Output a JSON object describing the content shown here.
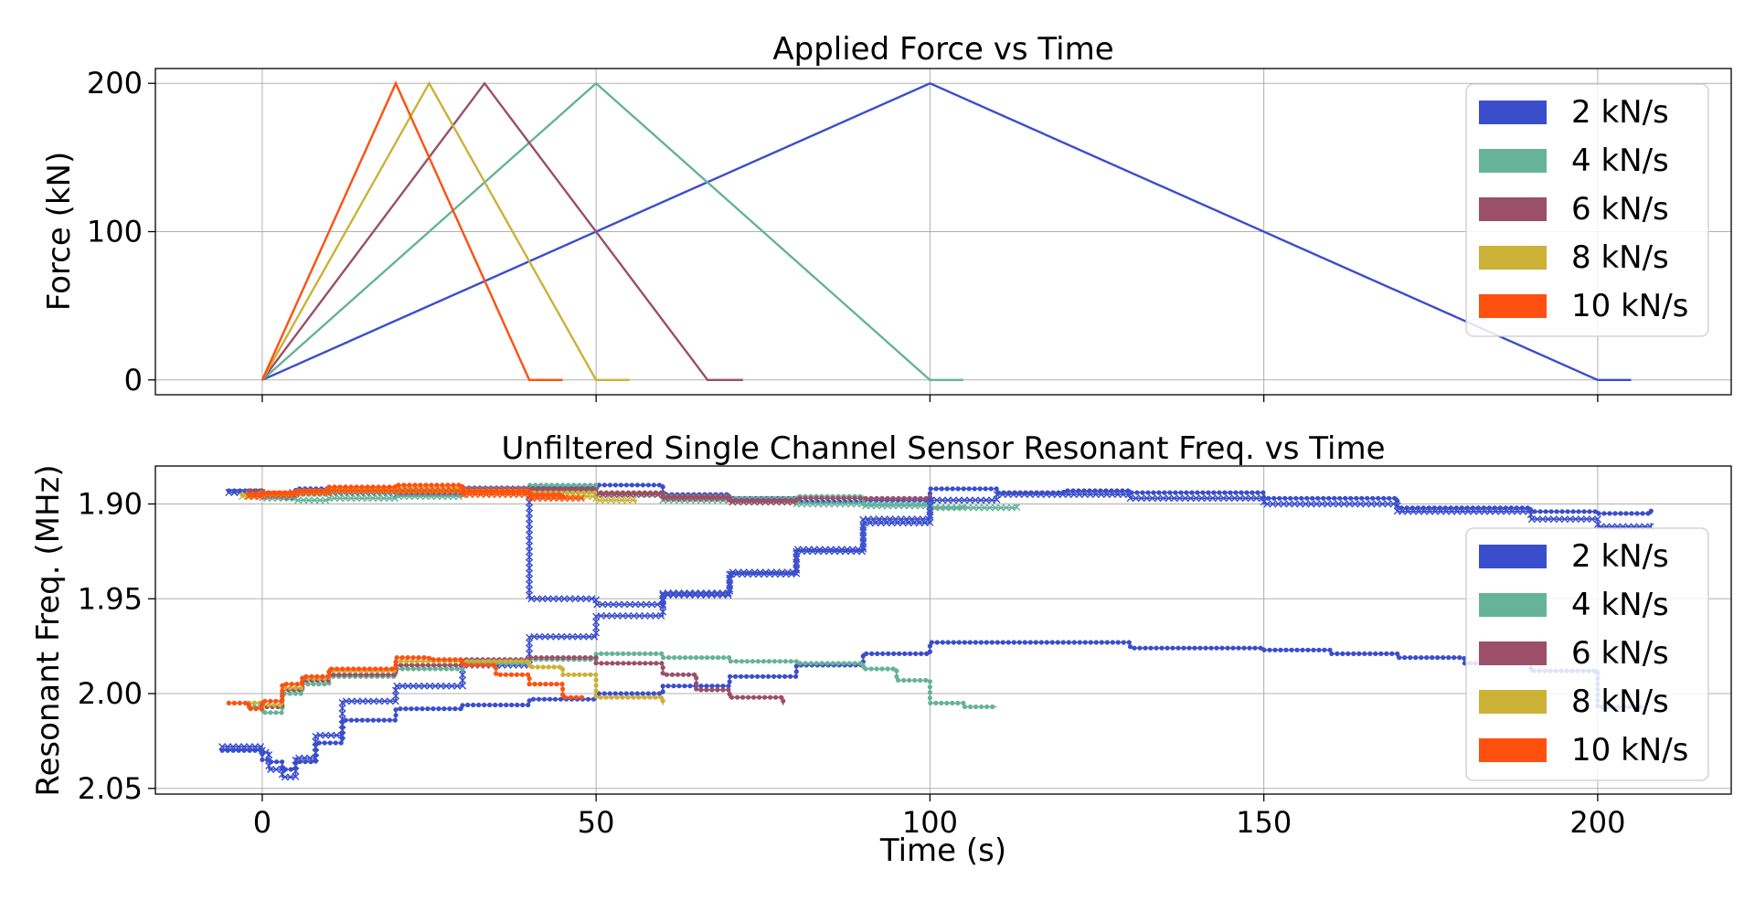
{
  "chart_data": [
    {
      "type": "line",
      "title": "Applied Force vs Time",
      "xlabel": "",
      "ylabel": "Force (kN)",
      "xlim": [
        -16,
        220
      ],
      "ylim": [
        -10,
        210
      ],
      "xticks": [
        0,
        50,
        100,
        150,
        200
      ],
      "yticks": [
        0,
        100,
        200
      ],
      "xtick_labels_shown": false,
      "grid": true,
      "legend": "top-right",
      "series": [
        {
          "name": "2 kN/s",
          "color": "#3a4ecc",
          "x": [
            0,
            100,
            200,
            205
          ],
          "y": [
            0,
            200,
            0,
            0
          ]
        },
        {
          "name": "4 kN/s",
          "color": "#66b39a",
          "x": [
            0,
            50,
            100,
            105
          ],
          "y": [
            0,
            200,
            0,
            0
          ]
        },
        {
          "name": "6 kN/s",
          "color": "#9b4f68",
          "x": [
            0,
            33.3,
            66.7,
            72
          ],
          "y": [
            0,
            200,
            0,
            0
          ]
        },
        {
          "name": "8 kN/s",
          "color": "#ccb137",
          "x": [
            0,
            25,
            50,
            55
          ],
          "y": [
            0,
            200,
            0,
            0
          ]
        },
        {
          "name": "10 kN/s",
          "color": "#ff5010",
          "x": [
            0,
            20,
            40,
            45
          ],
          "y": [
            0,
            200,
            0,
            0
          ]
        }
      ]
    },
    {
      "type": "line",
      "title": "Unfiltered Single Channel Sensor Resonant Freq. vs Time",
      "xlabel": "Time (s)",
      "ylabel": "Resonant Freq. (MHz)",
      "xlim": [
        -16,
        220
      ],
      "ylim": [
        2.053,
        1.88
      ],
      "y_inverted": true,
      "xticks": [
        0,
        50,
        100,
        150,
        200
      ],
      "yticks": [
        1.9,
        1.95,
        2.0,
        2.05
      ],
      "ytick_labels": [
        "1.90",
        "1.95",
        "2.00",
        "2.05"
      ],
      "grid": true,
      "legend": "bottom-right",
      "series": [
        {
          "name": "2 kN/s",
          "color": "#3a4ecc",
          "marker": "dot",
          "x": [
            -5,
            0,
            3,
            5,
            10,
            20,
            40,
            50,
            60,
            70,
            80,
            90,
            100,
            110,
            120,
            130,
            150,
            170,
            190,
            200,
            208
          ],
          "y": [
            1.893,
            1.895,
            1.897,
            1.892,
            1.893,
            1.892,
            1.891,
            1.89,
            1.895,
            1.897,
            1.899,
            1.898,
            1.892,
            1.894,
            1.893,
            1.894,
            1.897,
            1.902,
            1.904,
            1.905,
            1.903
          ]
        },
        {
          "name": "2 kN/s",
          "color": "#3a4ecc",
          "marker": "x",
          "x": [
            -5,
            0,
            2,
            4,
            6,
            10,
            15,
            20,
            30,
            40,
            50,
            60,
            70,
            80,
            90,
            100,
            110,
            120,
            130,
            150,
            170,
            190,
            200,
            208
          ],
          "y": [
            1.894,
            1.896,
            1.895,
            1.894,
            1.893,
            1.894,
            1.894,
            1.895,
            1.893,
            1.95,
            1.953,
            1.947,
            1.937,
            1.925,
            1.908,
            1.898,
            1.895,
            1.895,
            1.897,
            1.9,
            1.904,
            1.908,
            1.912,
            1.91
          ]
        },
        {
          "name": "4 kN/s",
          "color": "#66b39a",
          "marker": "dot",
          "x": [
            -2,
            0,
            5,
            10,
            20,
            30,
            40,
            50,
            60,
            70,
            80,
            90,
            100,
            105
          ],
          "y": [
            1.894,
            1.896,
            1.895,
            1.894,
            1.894,
            1.892,
            1.89,
            1.895,
            1.896,
            1.897,
            1.896,
            1.9,
            1.902,
            1.901
          ]
        },
        {
          "name": "4 kN/s",
          "color": "#66b39a",
          "marker": "x",
          "x": [
            -2,
            0,
            5,
            10,
            20,
            30,
            40,
            50,
            60,
            70,
            80,
            90,
            100,
            113
          ],
          "y": [
            1.895,
            1.897,
            1.898,
            1.897,
            1.896,
            1.894,
            1.893,
            1.895,
            1.898,
            1.899,
            1.9,
            1.901,
            1.902,
            1.9
          ]
        },
        {
          "name": "6 kN/s",
          "color": "#9b4f68",
          "marker": "dot",
          "x": [
            -2,
            0,
            5,
            10,
            20,
            30,
            40,
            50,
            60,
            70,
            80,
            100
          ],
          "y": [
            1.893,
            1.896,
            1.894,
            1.893,
            1.894,
            1.893,
            1.892,
            1.894,
            1.896,
            1.898,
            1.897,
            1.895
          ]
        },
        {
          "name": "6 kN/s",
          "color": "#9b4f68",
          "marker": "x",
          "x": [
            -2,
            0,
            5,
            10,
            20,
            30,
            40,
            50,
            60,
            70,
            80
          ],
          "y": [
            1.894,
            1.895,
            1.894,
            1.893,
            1.892,
            1.892,
            1.893,
            1.895,
            1.897,
            1.899,
            1.899
          ]
        },
        {
          "name": "8 kN/s",
          "color": "#ccb137",
          "marker": "dot",
          "x": [
            -3,
            0,
            5,
            10,
            20,
            30,
            40,
            50
          ],
          "y": [
            1.895,
            1.894,
            1.893,
            1.892,
            1.892,
            1.893,
            1.894,
            1.895
          ]
        },
        {
          "name": "8 kN/s",
          "color": "#ccb137",
          "marker": "x",
          "x": [
            -3,
            0,
            5,
            10,
            20,
            30,
            40,
            50,
            56
          ],
          "y": [
            1.896,
            1.895,
            1.894,
            1.893,
            1.893,
            1.894,
            1.896,
            1.898,
            1.899
          ]
        },
        {
          "name": "10 kN/s",
          "color": "#ff5010",
          "marker": "dot",
          "x": [
            -2,
            0,
            5,
            10,
            20,
            30,
            40,
            45
          ],
          "y": [
            1.895,
            1.894,
            1.893,
            1.891,
            1.89,
            1.893,
            1.895,
            1.896
          ]
        },
        {
          "name": "10 kN/s",
          "color": "#ff5010",
          "marker": "x",
          "x": [
            -2,
            0,
            5,
            10,
            20,
            30,
            40,
            48
          ],
          "y": [
            1.896,
            1.895,
            1.894,
            1.893,
            1.893,
            1.895,
            1.897,
            1.898
          ]
        },
        {
          "name": "2 kN/s",
          "color": "#3a4ecc",
          "marker": "dot",
          "x": [
            -6,
            0,
            1,
            3,
            5,
            8,
            12,
            20,
            30,
            40,
            50,
            60,
            70,
            80,
            90,
            100,
            120,
            130,
            140,
            150,
            160,
            170,
            180,
            190,
            200,
            207
          ],
          "y": [
            2.03,
            2.035,
            2.036,
            2.04,
            2.036,
            2.026,
            2.014,
            2.008,
            2.006,
            2.003,
            2.0,
            1.996,
            1.991,
            1.985,
            1.979,
            1.973,
            1.973,
            1.976,
            1.976,
            1.977,
            1.979,
            1.981,
            1.984,
            1.988,
            2.007,
            2.007
          ]
        },
        {
          "name": "2 kN/s",
          "color": "#3a4ecc",
          "marker": "x",
          "x": [
            -6,
            0,
            1,
            3,
            5,
            8,
            12,
            20,
            30,
            40,
            50,
            60,
            70,
            80,
            90,
            100
          ],
          "y": [
            2.028,
            2.031,
            2.04,
            2.044,
            2.034,
            2.022,
            2.004,
            1.996,
            1.985,
            1.97,
            1.959,
            1.948,
            1.936,
            1.924,
            1.91,
            1.896
          ]
        },
        {
          "name": "4 kN/s",
          "color": "#66b39a",
          "marker": "dot",
          "x": [
            -2,
            0,
            3,
            6,
            10,
            20,
            30,
            40,
            50,
            60,
            70,
            80,
            90,
            95,
            100,
            105,
            110
          ],
          "y": [
            2.007,
            2.01,
            2.0,
            1.995,
            1.991,
            1.987,
            1.984,
            1.982,
            1.979,
            1.981,
            1.983,
            1.984,
            1.987,
            1.993,
            2.005,
            2.007,
            2.007
          ]
        },
        {
          "name": "6 kN/s",
          "color": "#9b4f68",
          "marker": "dot",
          "x": [
            -2,
            0,
            3,
            6,
            10,
            20,
            30,
            40,
            50,
            60,
            65,
            70,
            78
          ],
          "y": [
            2.005,
            2.007,
            1.998,
            1.993,
            1.99,
            1.985,
            1.982,
            1.981,
            1.984,
            1.99,
            1.998,
            2.002,
            2.006
          ]
        },
        {
          "name": "8 kN/s",
          "color": "#ccb137",
          "marker": "dot",
          "x": [
            -2,
            0,
            3,
            6,
            10,
            20,
            30,
            40,
            45,
            50,
            60
          ],
          "y": [
            2.005,
            2.006,
            1.997,
            1.992,
            1.988,
            1.983,
            1.983,
            1.986,
            1.99,
            2.002,
            2.006
          ]
        },
        {
          "name": "10 kN/s",
          "color": "#ff5010",
          "marker": "dot",
          "x": [
            -5,
            -2,
            0,
            3,
            6,
            10,
            20,
            25,
            30,
            35,
            40,
            45,
            48
          ],
          "y": [
            2.005,
            2.008,
            2.004,
            1.995,
            1.991,
            1.987,
            1.981,
            1.982,
            1.985,
            1.99,
            1.995,
            2.002,
            2.002
          ]
        }
      ],
      "legend_entries": [
        "2 kN/s",
        "4 kN/s",
        "6 kN/s",
        "8 kN/s",
        "10 kN/s"
      ],
      "legend_colors": [
        "#3a4ecc",
        "#66b39a",
        "#9b4f68",
        "#ccb137",
        "#ff5010"
      ]
    }
  ]
}
